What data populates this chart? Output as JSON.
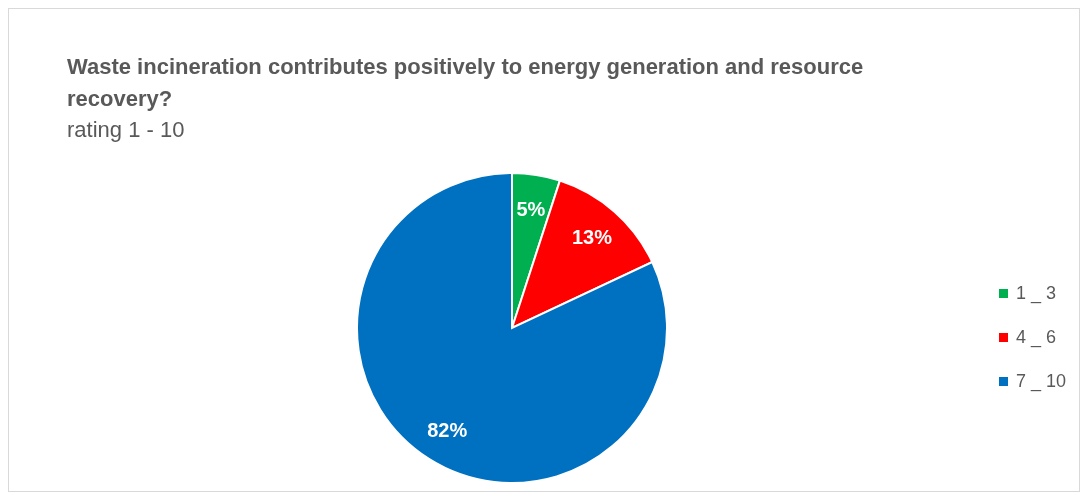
{
  "chart_data": {
    "type": "pie",
    "title": "Waste incineration contributes positively to energy generation and resource recovery?",
    "subtitle": "rating 1 - 10",
    "categories": [
      "1 _ 3",
      "4 _ 6",
      "7 _ 10"
    ],
    "values": [
      5,
      13,
      82
    ],
    "value_labels": [
      "5%",
      "13%",
      "82%"
    ],
    "colors": [
      "#00b050",
      "#ff0000",
      "#0070c0"
    ],
    "legend": "right"
  }
}
